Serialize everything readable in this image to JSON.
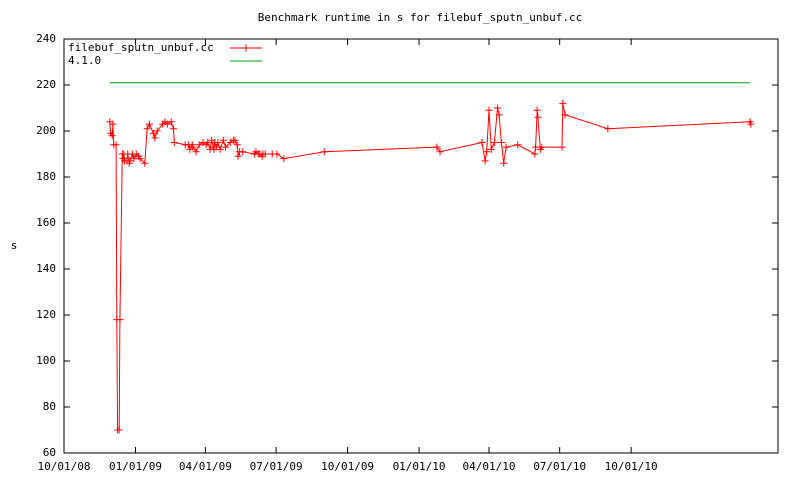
{
  "chart_data": {
    "type": "line",
    "title": "Benchmark runtime in s for filebuf_sputn_unbuf.cc",
    "y_label": "s",
    "xlim": [
      "2008-10-01",
      "2011-04-08"
    ],
    "xticks": [
      {
        "value": "2008-10-01",
        "label": "10/01/08"
      },
      {
        "value": "2009-01-01",
        "label": "01/01/09"
      },
      {
        "value": "2009-04-01",
        "label": "04/01/09"
      },
      {
        "value": "2009-07-01",
        "label": "07/01/09"
      },
      {
        "value": "2009-10-01",
        "label": "10/01/09"
      },
      {
        "value": "2010-01-01",
        "label": "01/01/10"
      },
      {
        "value": "2010-04-01",
        "label": "04/01/10"
      },
      {
        "value": "2010-07-01",
        "label": "07/01/10"
      },
      {
        "value": "2010-10-01",
        "label": "10/01/10"
      }
    ],
    "ylim": [
      60,
      240
    ],
    "yticks": [
      60,
      80,
      100,
      120,
      140,
      160,
      180,
      200,
      220,
      240
    ],
    "legend": "top-left",
    "series": [
      {
        "name": "filebuf_sputn_unbuf.cc",
        "color": "#ff0000",
        "markers": true,
        "x": [
          "2008-11-29",
          "2008-11-30",
          "2008-12-02",
          "2008-12-03",
          "2008-12-04",
          "2008-12-07",
          "2008-12-08",
          "2008-12-09",
          "2008-12-11",
          "2008-12-12",
          "2008-12-15",
          "2008-12-16",
          "2008-12-17",
          "2008-12-18",
          "2008-12-21",
          "2008-12-22",
          "2008-12-24",
          "2008-12-25",
          "2008-12-28",
          "2008-12-30",
          "2009-01-02",
          "2009-01-05",
          "2009-01-07",
          "2009-01-13",
          "2009-01-16",
          "2009-01-19",
          "2009-01-24",
          "2009-01-26",
          "2009-01-29",
          "2009-02-05",
          "2009-02-08",
          "2009-02-11",
          "2009-02-16",
          "2009-02-19",
          "2009-02-20",
          "2009-03-06",
          "2009-03-10",
          "2009-03-12",
          "2009-03-15",
          "2009-03-16",
          "2009-03-20",
          "2009-03-24",
          "2009-03-29",
          "2009-04-02",
          "2009-04-04",
          "2009-04-07",
          "2009-04-09",
          "2009-04-11",
          "2009-04-12",
          "2009-04-13",
          "2009-04-15",
          "2009-04-17",
          "2009-04-20",
          "2009-04-24",
          "2009-04-27",
          "2009-05-03",
          "2009-05-07",
          "2009-05-09",
          "2009-05-12",
          "2009-05-13",
          "2009-05-15",
          "2009-05-19",
          "2009-06-03",
          "2009-06-05",
          "2009-06-08",
          "2009-06-10",
          "2009-06-13",
          "2009-06-14",
          "2009-06-17",
          "2009-06-26",
          "2009-07-02",
          "2009-07-11",
          "2009-09-01",
          "2010-01-24",
          "2010-01-28",
          "2010-03-23",
          "2010-03-27",
          "2010-03-29",
          "2010-04-01",
          "2010-04-04",
          "2010-04-08",
          "2010-04-12",
          "2010-04-14",
          "2010-04-17",
          "2010-04-20",
          "2010-04-23",
          "2010-05-08",
          "2010-05-30",
          "2010-05-31",
          "2010-06-02",
          "2010-06-03",
          "2010-06-06",
          "2010-06-08",
          "2010-07-04",
          "2010-07-05",
          "2010-07-08",
          "2010-09-01",
          "2011-03-03",
          "2011-03-04"
        ],
        "values": [
          204,
          199,
          198,
          203,
          194,
          194,
          118,
          70,
          70,
          118,
          190,
          188,
          190,
          187,
          187,
          190,
          186,
          187,
          190,
          188,
          190,
          189,
          188,
          186,
          201,
          203,
          199,
          197,
          200,
          203,
          204,
          203,
          204,
          201,
          195,
          194,
          194,
          192,
          194,
          193,
          191,
          194,
          195,
          194,
          195,
          192,
          196,
          193,
          192,
          195,
          193,
          195,
          192,
          196,
          193,
          195,
          196,
          196,
          194,
          189,
          191,
          191,
          190,
          191,
          190,
          190,
          189,
          190,
          190,
          190,
          190,
          188,
          191,
          193,
          191,
          195,
          187,
          191,
          209,
          192,
          195,
          210,
          207,
          195,
          186,
          193,
          194,
          190,
          193,
          209,
          206,
          192,
          193,
          193,
          212,
          207,
          201,
          204,
          203
        ]
      },
      {
        "name": "4.1.0",
        "color": "#00a000",
        "markers": false,
        "x": [
          "2008-11-29",
          "2011-03-03"
        ],
        "values": [
          221,
          221
        ]
      }
    ]
  }
}
